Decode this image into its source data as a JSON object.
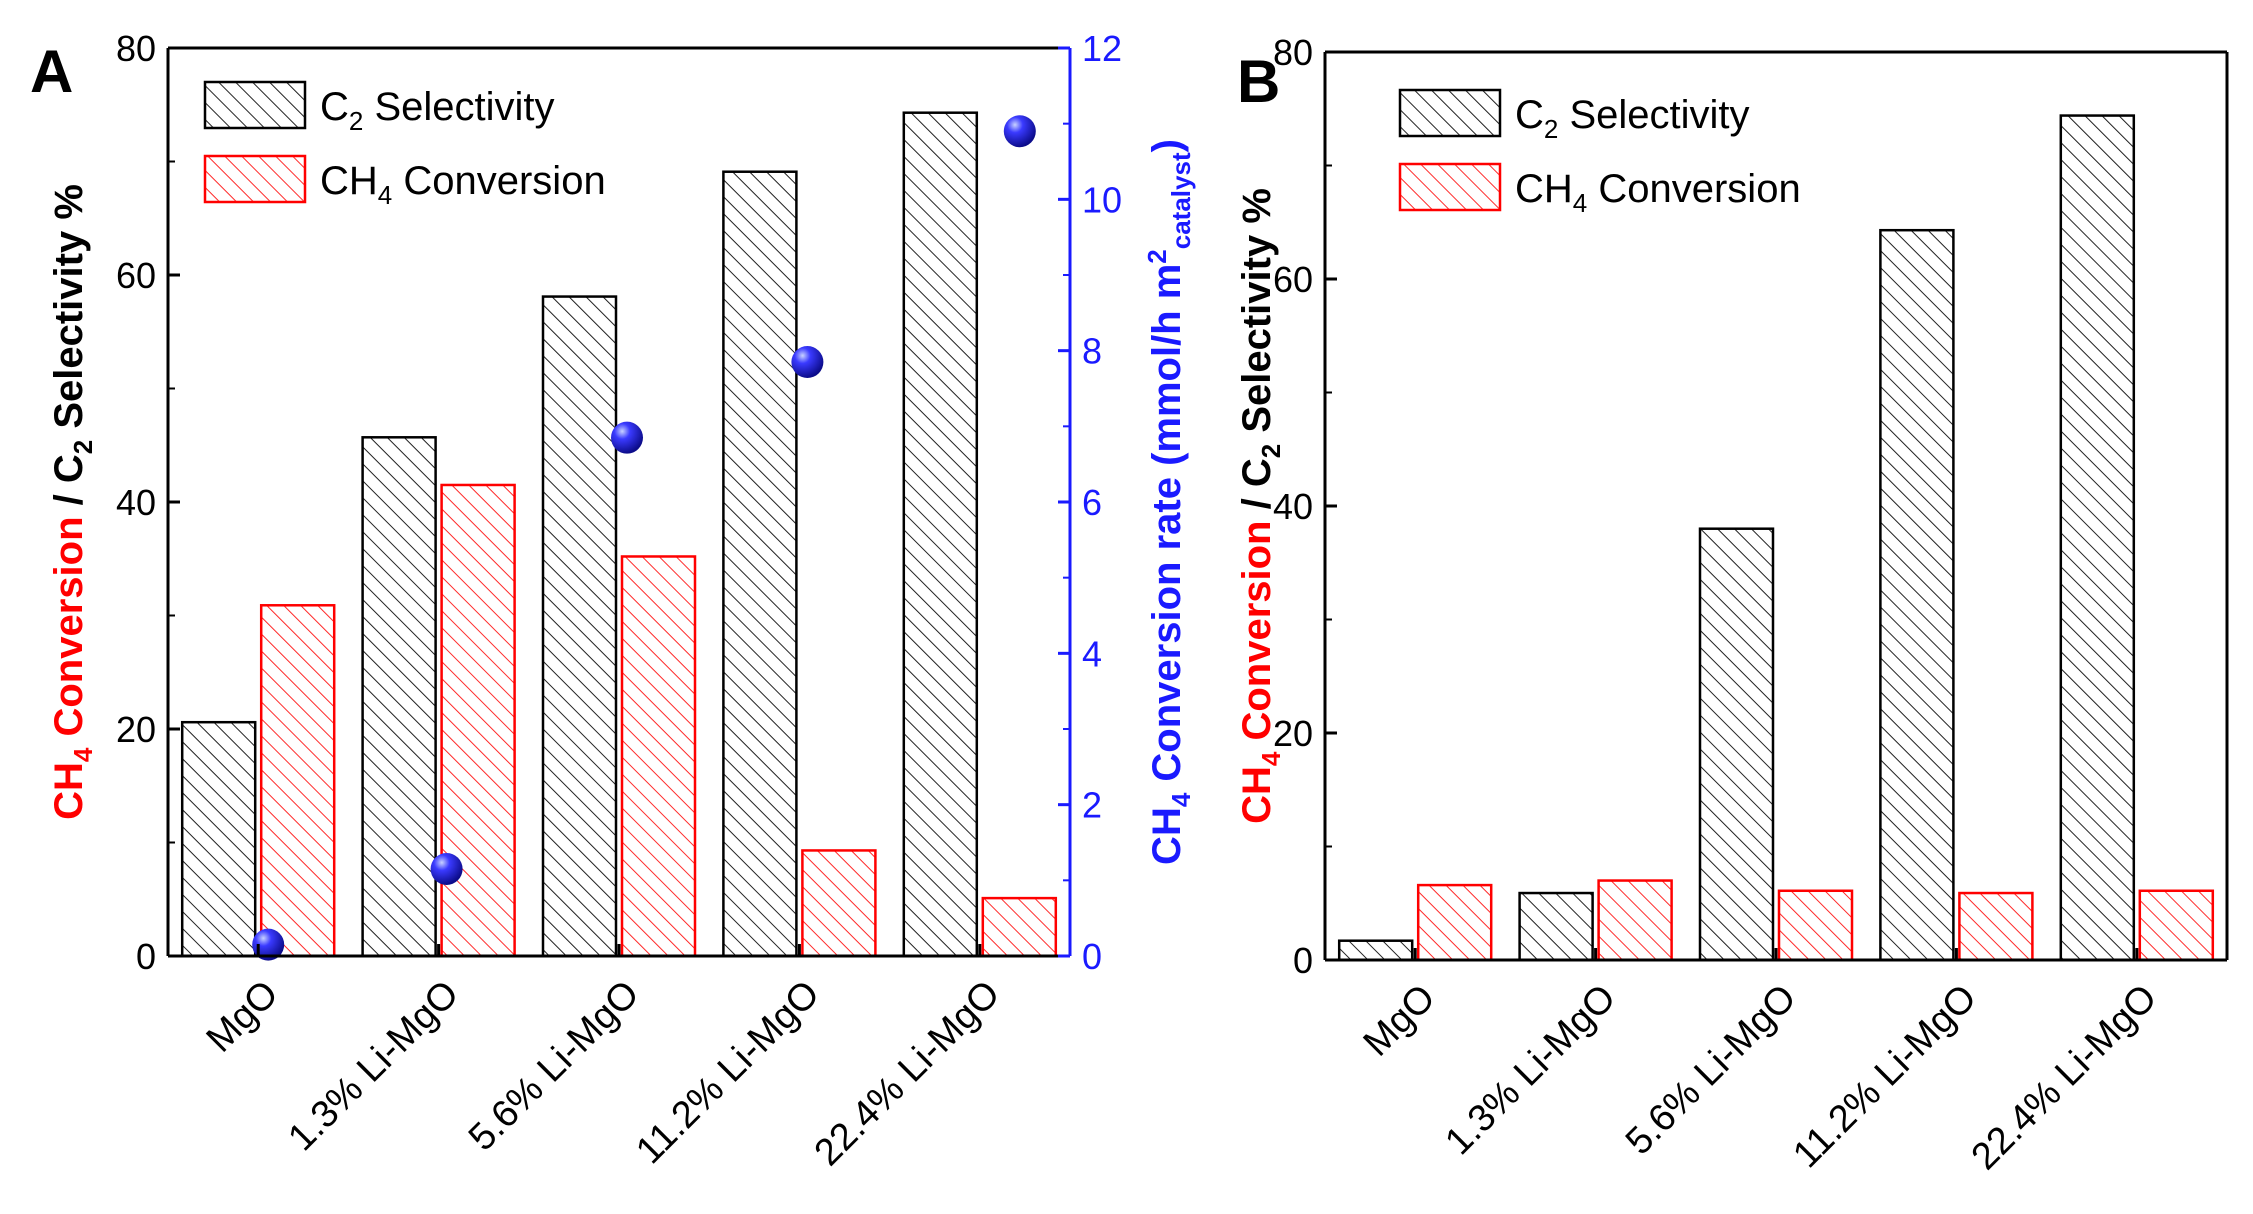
{
  "chart_data": [
    {
      "panel": "A",
      "type": "bar",
      "categories": [
        "MgO",
        "1.3% Li-MgO",
        "5.6% Li-MgO",
        "11.2% Li-MgO",
        "22.4% Li-MgO"
      ],
      "series": [
        {
          "name": "C2 Selectivity",
          "name_main": "C",
          "name_sub": "2",
          "name_rest": " Selectivity",
          "values": [
            20.6,
            45.7,
            58.1,
            69.1,
            74.3
          ],
          "color": "#000000"
        },
        {
          "name": "CH4 Conversion",
          "name_main": "CH",
          "name_sub": "4",
          "name_rest": " Conversion",
          "values": [
            30.9,
            41.5,
            35.2,
            9.3,
            5.1
          ],
          "color": "#ff0000"
        }
      ],
      "secondary_series": {
        "type": "scatter",
        "axis": "right",
        "values": [
          0.15,
          1.15,
          6.85,
          7.85,
          10.9
        ],
        "color": "#1a1aff"
      },
      "ylim": [
        0,
        80
      ],
      "yticks": [
        "0",
        "20",
        "40",
        "60",
        "80"
      ],
      "y2lim": [
        0,
        12
      ],
      "y2ticks": [
        "0",
        "2",
        "4",
        "6",
        "8",
        "10",
        "12"
      ],
      "ylabel": {
        "red_main": "CH",
        "red_sub": "4",
        "red_rest": " Conversion",
        "sep": " / ",
        "black_main": "C",
        "black_sub": "2",
        "black_rest": " Selectivity %"
      },
      "y2label": {
        "main": "CH",
        "sub": "4",
        "rest": " Conversion rate (mmol/h m",
        "sup": "2",
        "cat": "catalyst",
        "end": ")"
      },
      "legend_position": "top-left",
      "grid": false
    },
    {
      "panel": "B",
      "type": "bar",
      "categories": [
        "MgO",
        "1.3% Li-MgO",
        "5.6% Li-MgO",
        "11.2% Li-MgO",
        "22.4% Li-MgO"
      ],
      "series": [
        {
          "name": "C2 Selectivity",
          "name_main": "C",
          "name_sub": "2",
          "name_rest": " Selectivity",
          "values": [
            1.7,
            5.9,
            38.0,
            64.3,
            74.4
          ],
          "color": "#000000"
        },
        {
          "name": "CH4 Conversion",
          "name_main": "CH",
          "name_sub": "4",
          "name_rest": " Conversion",
          "values": [
            6.6,
            7.0,
            6.1,
            5.9,
            6.1
          ],
          "color": "#ff0000"
        }
      ],
      "ylim": [
        0,
        80
      ],
      "yticks": [
        "0",
        "20",
        "40",
        "60",
        "80"
      ],
      "ylabel": {
        "red_main": "CH",
        "red_sub": "4",
        "red_rest": " Conversion",
        "sep": " / ",
        "black_main": "C",
        "black_sub": "2",
        "black_rest": " Selectivity %"
      },
      "legend_position": "top-left",
      "grid": false
    }
  ]
}
